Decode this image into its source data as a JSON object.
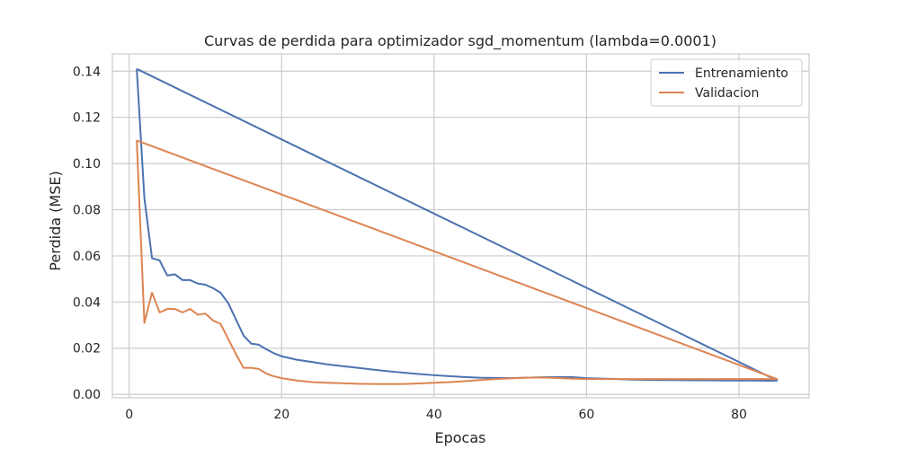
{
  "chart_data": {
    "type": "line",
    "title": "Curvas de perdida para optimizador sgd_momentum (lambda=0.0001)",
    "xlabel": "Epocas",
    "ylabel": "Perdida (MSE)",
    "xlim": [
      -2.2,
      89.2
    ],
    "ylim": [
      -0.0015,
      0.1475
    ],
    "xticks": [
      0,
      20,
      40,
      60,
      80
    ],
    "yticks": [
      0.0,
      0.02,
      0.04,
      0.06,
      0.08,
      0.1,
      0.12,
      0.14
    ],
    "xtick_labels": [
      "0",
      "20",
      "40",
      "60",
      "80"
    ],
    "ytick_labels": [
      "0.00",
      "0.02",
      "0.04",
      "0.06",
      "0.08",
      "0.10",
      "0.12",
      "0.14"
    ],
    "grid": true,
    "legend_position": "top-right",
    "series": [
      {
        "name": "Entrenamiento",
        "color": "#4c72b0",
        "x": [
          1,
          2,
          3,
          4,
          5,
          6,
          7,
          8,
          9,
          10,
          11,
          12,
          13,
          14,
          15,
          16,
          17,
          18,
          19,
          20,
          22,
          24,
          26,
          28,
          30,
          32,
          34,
          36,
          38,
          40,
          42,
          44,
          46,
          48,
          50,
          52,
          54,
          56,
          58,
          60,
          62,
          64,
          66,
          68,
          70,
          72,
          74,
          76,
          78,
          80,
          82,
          84,
          85,
          1
        ],
        "y": [
          0.141,
          0.085,
          0.059,
          0.058,
          0.0515,
          0.052,
          0.0495,
          0.0495,
          0.048,
          0.0475,
          0.046,
          0.044,
          0.0395,
          0.0325,
          0.0255,
          0.022,
          0.0215,
          0.0195,
          0.0178,
          0.0165,
          0.015,
          0.014,
          0.013,
          0.0122,
          0.0115,
          0.0107,
          0.01,
          0.0094,
          0.0088,
          0.0083,
          0.0079,
          0.0075,
          0.0072,
          0.0071,
          0.007,
          0.0072,
          0.0074,
          0.0075,
          0.0075,
          0.007,
          0.0068,
          0.0066,
          0.0064,
          0.0063,
          0.0062,
          0.0062,
          0.0061,
          0.0061,
          0.006,
          0.006,
          0.006,
          0.0059,
          0.006,
          0.141
        ]
      },
      {
        "name": "Validacion",
        "color": "#dd8452",
        "x": [
          1,
          2,
          3,
          4,
          5,
          6,
          7,
          8,
          9,
          10,
          11,
          12,
          13,
          14,
          15,
          16,
          17,
          18,
          19,
          20,
          22,
          24,
          26,
          28,
          30,
          32,
          34,
          36,
          38,
          40,
          42,
          44,
          46,
          48,
          50,
          52,
          54,
          56,
          58,
          60,
          62,
          64,
          66,
          68,
          70,
          72,
          74,
          76,
          78,
          80,
          82,
          84,
          85,
          1
        ],
        "y": [
          0.11,
          0.031,
          0.044,
          0.0355,
          0.037,
          0.037,
          0.0355,
          0.037,
          0.0345,
          0.035,
          0.032,
          0.0305,
          0.024,
          0.0175,
          0.0115,
          0.0115,
          0.011,
          0.009,
          0.0078,
          0.007,
          0.006,
          0.0053,
          0.005,
          0.0048,
          0.0046,
          0.0045,
          0.0045,
          0.0045,
          0.0047,
          0.005,
          0.0053,
          0.0057,
          0.0062,
          0.0066,
          0.0069,
          0.0072,
          0.0073,
          0.0071,
          0.0068,
          0.0066,
          0.0066,
          0.0066,
          0.0066,
          0.0066,
          0.0066,
          0.0066,
          0.0066,
          0.0066,
          0.0066,
          0.0066,
          0.0066,
          0.0066,
          0.0066,
          0.11
        ]
      }
    ]
  }
}
